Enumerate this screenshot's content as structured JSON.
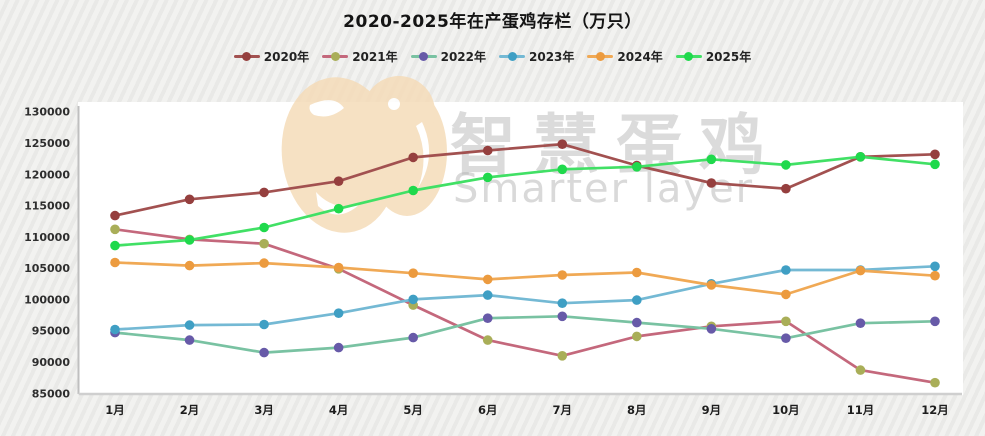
{
  "title": "2020-2025年在产蛋鸡存栏（万只）",
  "watermark": {
    "cn": "智慧蛋鸡",
    "en": "Smarter layer"
  },
  "chart_data": {
    "type": "line",
    "title": "2020-2025年在产蛋鸡存栏（万只）",
    "unit": "万只",
    "xlabel": "",
    "ylabel": "",
    "ylim": [
      85000,
      130000
    ],
    "y_ticks": [
      85000,
      90000,
      95000,
      100000,
      105000,
      110000,
      115000,
      120000,
      125000,
      130000
    ],
    "grid": false,
    "legend_position": "top",
    "categories": [
      "1月",
      "2月",
      "3月",
      "4月",
      "5月",
      "6月",
      "7月",
      "8月",
      "9月",
      "10月",
      "11月",
      "12月"
    ],
    "series": [
      {
        "name": "2020年",
        "line_color": "#a25150",
        "marker_color": "#953f3e",
        "values": [
          113400,
          116000,
          117100,
          118900,
          122700,
          123800,
          124800,
          121400,
          118600,
          117700,
          122800,
          123200
        ]
      },
      {
        "name": "2021年",
        "line_color": "#c4687c",
        "marker_color": "#a9ae58",
        "values": [
          111200,
          109600,
          108900,
          104900,
          99100,
          93500,
          91000,
          94100,
          95700,
          96500,
          88700,
          86700
        ]
      },
      {
        "name": "2022年",
        "line_color": "#79c2a2",
        "marker_color": "#675aa8",
        "values": [
          94700,
          93500,
          91500,
          92300,
          93900,
          97000,
          97300,
          96300,
          95300,
          93800,
          96200,
          96500
        ]
      },
      {
        "name": "2023年",
        "line_color": "#74b9d4",
        "marker_color": "#3f9fc4",
        "values": [
          95200,
          95900,
          96000,
          97800,
          100000,
          100700,
          99400,
          99900,
          102500,
          104700,
          104700,
          105300
        ]
      },
      {
        "name": "2024年",
        "line_color": "#f0a955",
        "marker_color": "#ec9b3f",
        "values": [
          105900,
          105400,
          105800,
          105100,
          104200,
          103200,
          103900,
          104300,
          102300,
          100800,
          104600,
          103800
        ]
      },
      {
        "name": "2025年",
        "line_color": "#41e065",
        "marker_color": "#1fd94c",
        "values": [
          108600,
          109500,
          111500,
          114500,
          117400,
          119500,
          120800,
          121200,
          122400,
          121500,
          122800,
          121600
        ]
      }
    ]
  }
}
